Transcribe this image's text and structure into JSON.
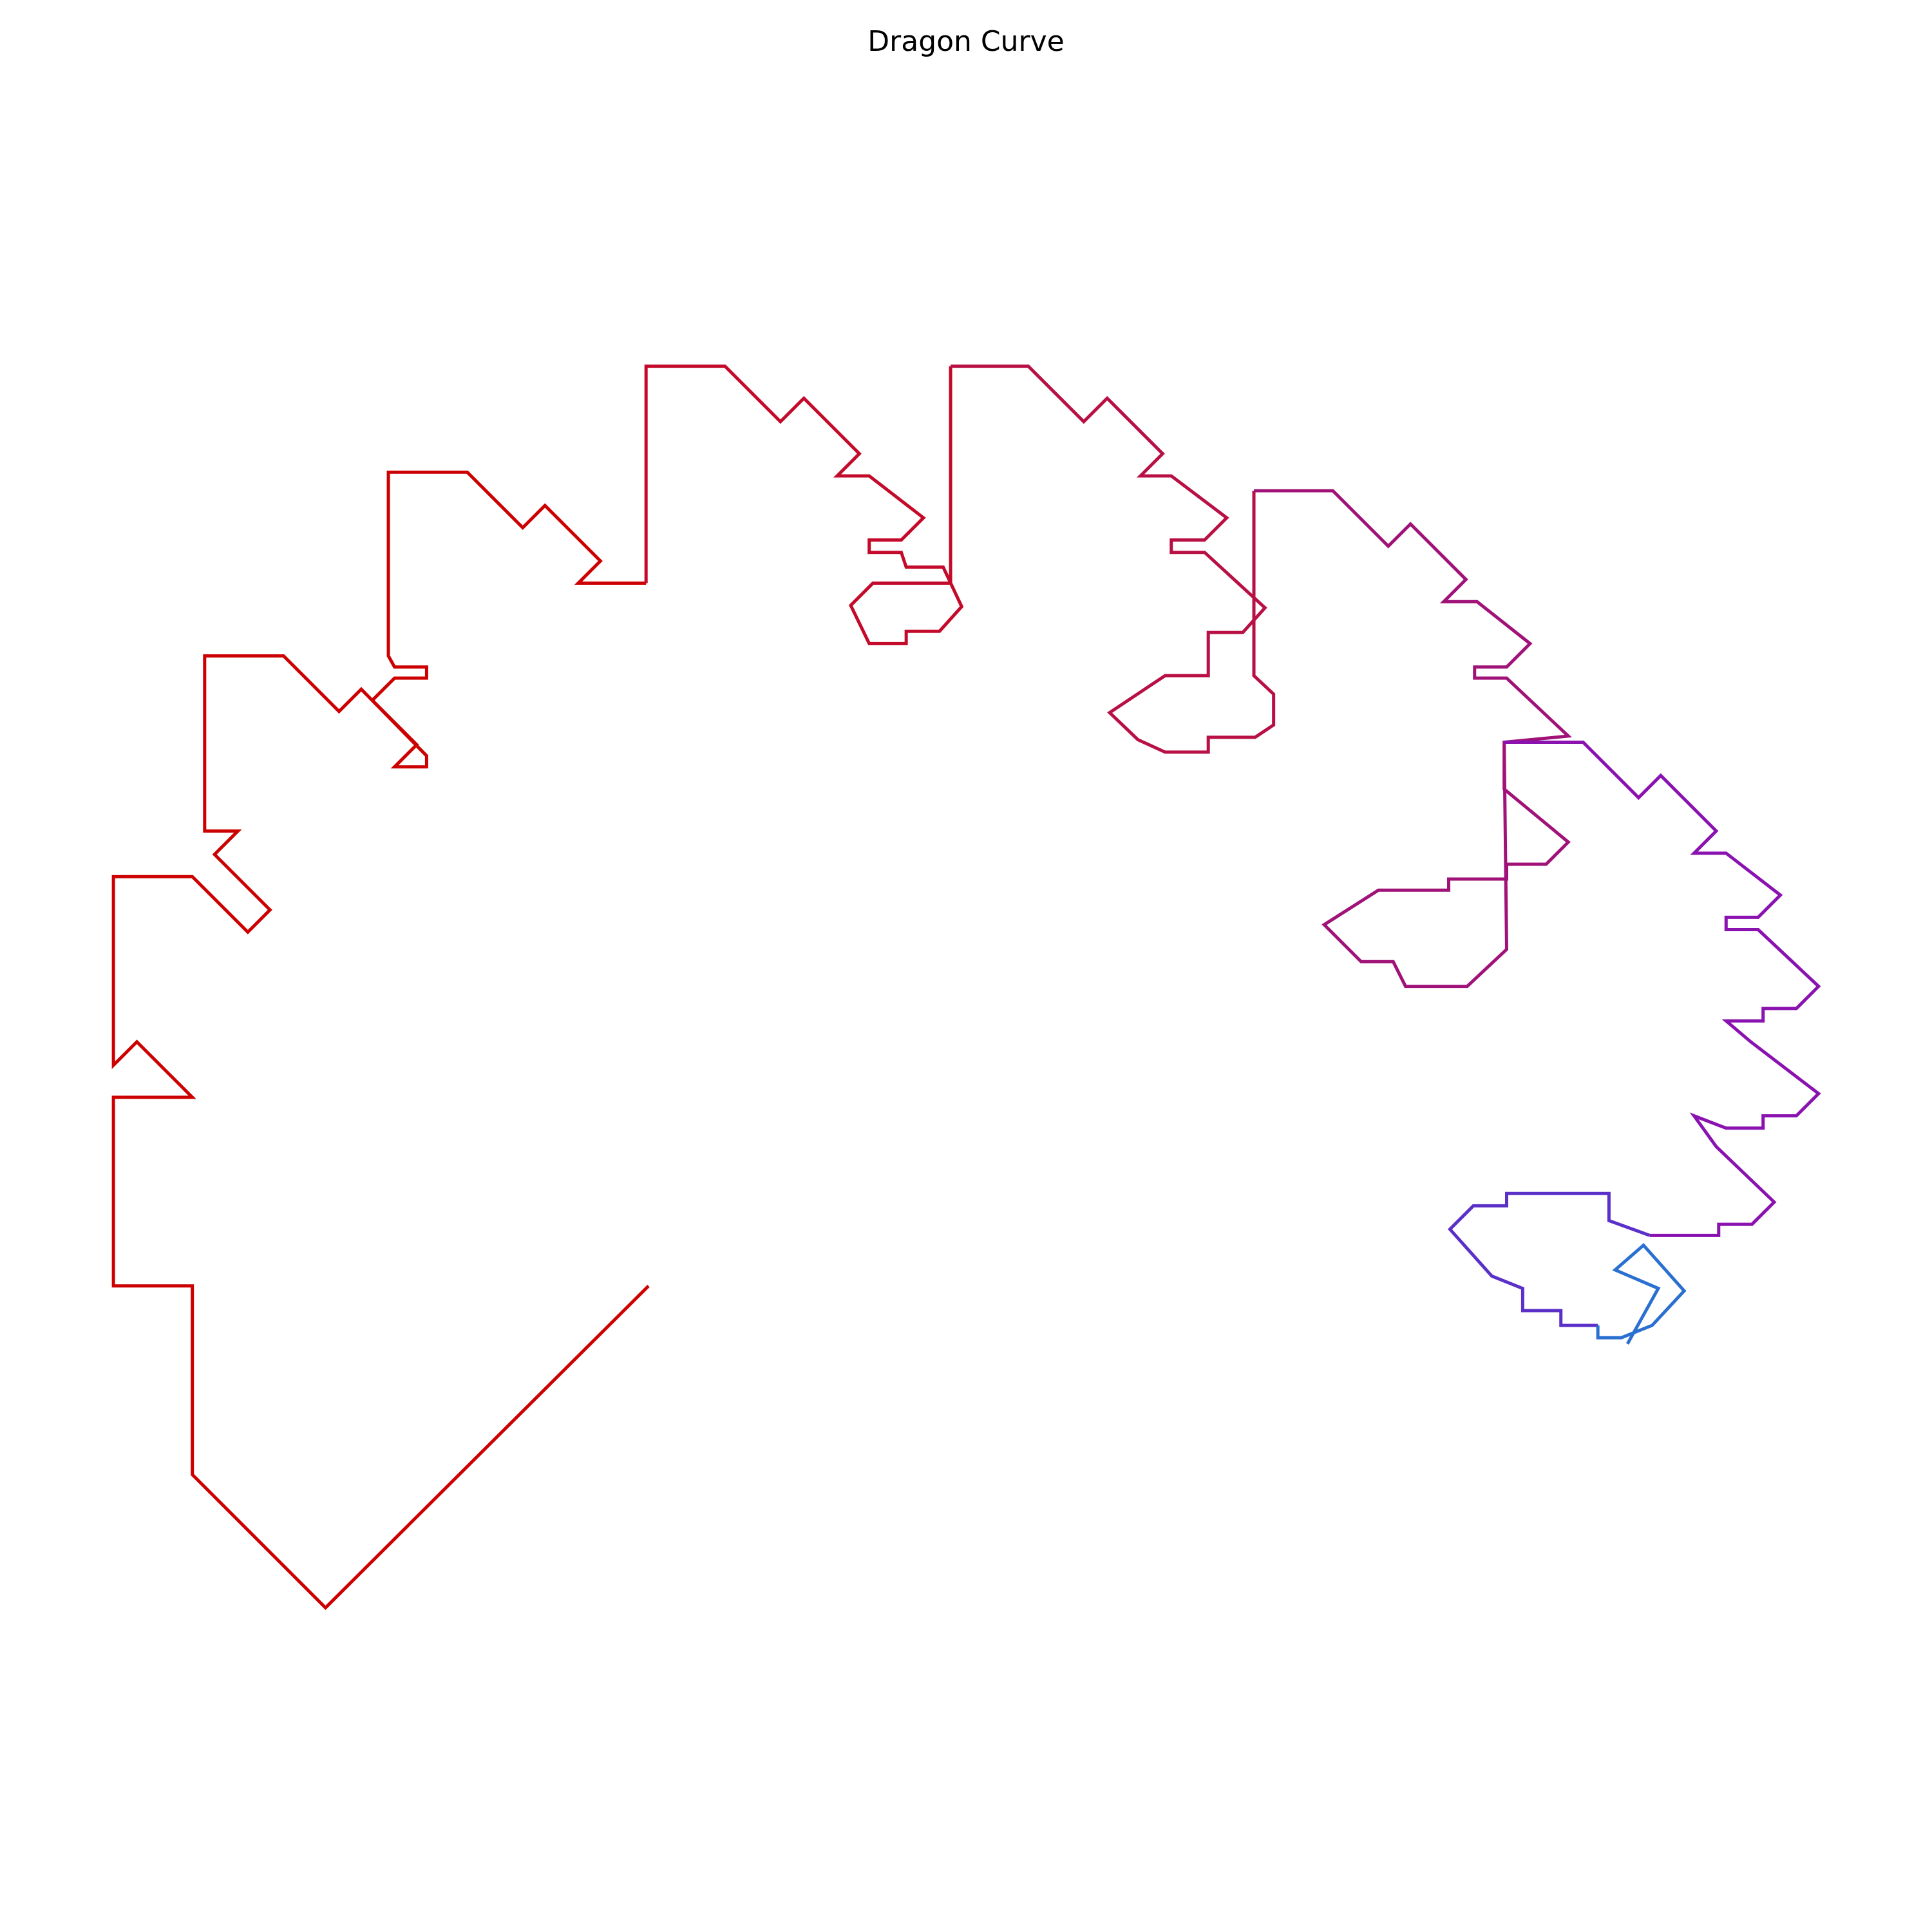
{
  "chart_data": {
    "type": "line",
    "title": "Dragon Curve",
    "xlim": [
      0,
      1567
    ],
    "ylim": [
      1567,
      0
    ],
    "series": [
      {
        "color": "#cc0000",
        "x": [
          526,
          264,
          156,
          156,
          92,
          92,
          156,
          111,
          92,
          92,
          156,
          201,
          219,
          174,
          193,
          166,
          166,
          230,
          275,
          293,
          346,
          346,
          320,
          338,
          302,
          320,
          346,
          346,
          320,
          315,
          315,
          379,
          424,
          442,
          487,
          469,
          524
        ],
        "y": [
          1043,
          1304,
          1196,
          1043,
          1043,
          890,
          890,
          845,
          864,
          711,
          711,
          756,
          738,
          693,
          674,
          674,
          532,
          532,
          577,
          559,
          613,
          622,
          622,
          604,
          568,
          550,
          550,
          541,
          541,
          532,
          383,
          383,
          428,
          410,
          455,
          473,
          473
        ]
      },
      {
        "color": "#c40a2a",
        "x": [
          524,
          524,
          588,
          633,
          652,
          697,
          679,
          705,
          749,
          731,
          705,
          705,
          731,
          735,
          765,
          780,
          762,
          735,
          735,
          705,
          690,
          708,
          771,
          771
        ],
        "y": [
          473,
          297,
          297,
          342,
          323,
          368,
          386,
          386,
          420,
          438,
          438,
          448,
          448,
          460,
          460,
          492,
          512,
          512,
          522,
          522,
          491,
          473,
          473,
          297
        ]
      },
      {
        "color": "#b81045",
        "x": [
          771,
          834,
          879,
          898,
          943,
          925,
          950,
          995,
          977,
          950,
          950,
          977,
          1026,
          1008,
          980,
          980,
          945,
          900,
          923,
          945,
          980,
          980,
          1018,
          1033,
          1033,
          1017,
          1017
        ],
        "y": [
          297,
          297,
          342,
          323,
          368,
          386,
          386,
          420,
          438,
          438,
          448,
          448,
          493,
          513,
          513,
          548,
          548,
          578,
          600,
          610,
          610,
          598,
          598,
          588,
          563,
          548,
          398
        ]
      },
      {
        "color": "#a01278",
        "x": [
          1017,
          1081,
          1126,
          1144,
          1189,
          1171,
          1198,
          1241,
          1222,
          1196,
          1196,
          1222,
          1272,
          1220,
          1220,
          1272,
          1254,
          1222,
          1222,
          1175,
          1175,
          1118,
          1074,
          1104,
          1130,
          1140,
          1190,
          1222,
          1220
        ],
        "y": [
          398,
          398,
          443,
          425,
          470,
          488,
          488,
          522,
          541,
          541,
          550,
          550,
          597,
          602,
          640,
          683,
          701,
          701,
          713,
          713,
          722,
          722,
          750,
          780,
          780,
          800,
          800,
          770,
          602
        ]
      },
      {
        "color": "#8a12b0",
        "x": [
          1220,
          1284,
          1329,
          1347,
          1392,
          1374,
          1400,
          1444,
          1426,
          1400,
          1400,
          1426,
          1475,
          1457,
          1430,
          1430,
          1400,
          1420,
          1475,
          1457,
          1430,
          1430,
          1400,
          1374,
          1392,
          1439,
          1421,
          1394,
          1394,
          1338
        ],
        "y": [
          602,
          602,
          647,
          629,
          674,
          692,
          692,
          726,
          744,
          744,
          754,
          754,
          800,
          818,
          818,
          828,
          828,
          845,
          887,
          905,
          905,
          915,
          915,
          905,
          930,
          975,
          993,
          993,
          1002,
          1002
        ]
      },
      {
        "color": "#5a30c8",
        "x": [
          1338,
          1305,
          1305,
          1277,
          1222,
          1222,
          1195,
          1176,
          1210,
          1235,
          1235,
          1266,
          1266,
          1296
        ],
        "y": [
          1002,
          990,
          968,
          968,
          968,
          978,
          978,
          997,
          1035,
          1045,
          1063,
          1063,
          1075,
          1075
        ]
      },
      {
        "color": "#2a70d0",
        "x": [
          1296,
          1296,
          1315,
          1340,
          1366,
          1333,
          1310,
          1345,
          1320
        ],
        "y": [
          1075,
          1085,
          1085,
          1075,
          1047,
          1010,
          1030,
          1045,
          1090
        ]
      }
    ]
  }
}
